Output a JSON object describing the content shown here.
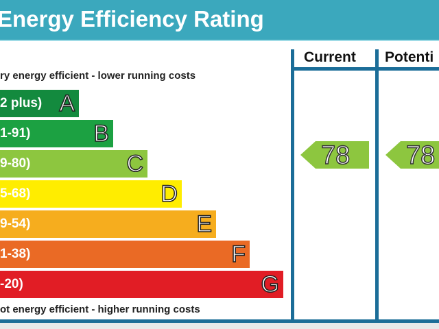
{
  "title": "Energy Efficiency Rating",
  "columns": {
    "current": "Current",
    "potential": "Potenti"
  },
  "notes": {
    "top": "ry energy efficient - lower running costs",
    "bottom": "ot energy efficient - higher running costs"
  },
  "chart_data": {
    "type": "bar",
    "bands": [
      {
        "band": "A",
        "range": "2 plus)",
        "color": "#138a3e"
      },
      {
        "band": "B",
        "range": "1-91)",
        "color": "#1ca142"
      },
      {
        "band": "C",
        "range": "9-80)",
        "color": "#8dc63f"
      },
      {
        "band": "D",
        "range": "5-68)",
        "color": "#ffed00"
      },
      {
        "band": "E",
        "range": "9-54)",
        "color": "#f6ad1e"
      },
      {
        "band": "F",
        "range": "1-38)",
        "color": "#ea6a25"
      },
      {
        "band": "G",
        "range": "-20)",
        "color": "#e11d25"
      }
    ],
    "current": {
      "value": "78",
      "color": "#8dc63f"
    },
    "potential": {
      "value": "78",
      "color": "#8dc63f"
    }
  }
}
